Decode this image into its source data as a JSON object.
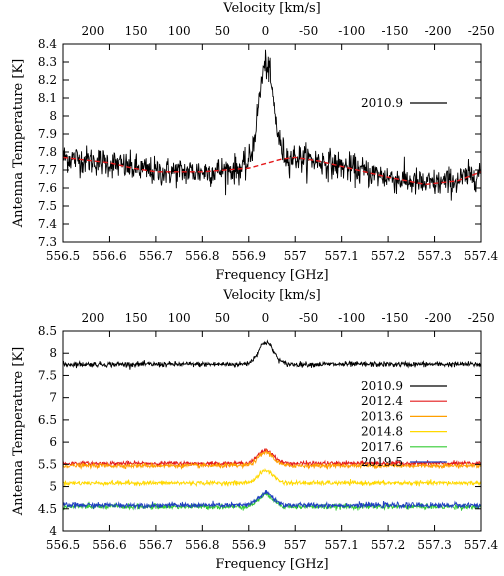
{
  "chart_data": [
    {
      "type": "line",
      "xlabel": "Frequency [GHz]",
      "ylabel": "Antenna Temperature [K]",
      "x2label": "Velocity [km/s]",
      "xlim": [
        556.5,
        557.4
      ],
      "ylim": [
        7.3,
        8.4
      ],
      "x_ticks": [
        "556.5",
        "556.6",
        "556.7",
        "556.8",
        "556.9",
        "557",
        "557.1",
        "557.2",
        "557.3",
        "557.4"
      ],
      "y_ticks": [
        "7.3",
        "7.4",
        "7.5",
        "7.6",
        "7.7",
        "7.8",
        "7.9",
        "8",
        "8.1",
        "8.2",
        "8.3",
        "8.4"
      ],
      "x2_ticks": [
        "200",
        "150",
        "100",
        "50",
        "0",
        "-50",
        "-100",
        "-150",
        "-200",
        "-250"
      ],
      "x2_tick_values": [
        200,
        150,
        100,
        50,
        0,
        -50,
        -100,
        -150,
        -200,
        -250
      ],
      "legend_position": "right",
      "grid": false,
      "series": [
        {
          "name": "2010.9",
          "color": "#000000",
          "baseline": [
            [
              556.5,
              7.77
            ],
            [
              556.6,
              7.74
            ],
            [
              556.65,
              7.71
            ],
            [
              556.7,
              7.69
            ],
            [
              556.8,
              7.69
            ],
            [
              556.9,
              7.71
            ],
            [
              556.97,
              7.76
            ],
            [
              557.0,
              7.77
            ],
            [
              557.05,
              7.75
            ],
            [
              557.1,
              7.72
            ],
            [
              557.2,
              7.66
            ],
            [
              557.28,
              7.62
            ],
            [
              557.35,
              7.64
            ],
            [
              557.4,
              7.69
            ]
          ],
          "line_centre": 556.937,
          "line_peak": 0.55,
          "line_width": 0.016,
          "noise": 0.04
        },
        {
          "name": "",
          "color": "#e41a1c",
          "dashed": true,
          "baseline": [
            [
              556.5,
              7.77
            ],
            [
              556.6,
              7.74
            ],
            [
              556.65,
              7.71
            ],
            [
              556.7,
              7.69
            ],
            [
              556.8,
              7.69
            ],
            [
              556.9,
              7.71
            ],
            [
              556.97,
              7.76
            ],
            [
              557.0,
              7.77
            ],
            [
              557.05,
              7.75
            ],
            [
              557.1,
              7.72
            ],
            [
              557.2,
              7.66
            ],
            [
              557.28,
              7.62
            ],
            [
              557.35,
              7.64
            ],
            [
              557.4,
              7.69
            ]
          ],
          "line_peak": 0,
          "noise": 0
        }
      ]
    },
    {
      "type": "line",
      "xlabel": "Frequency [GHz]",
      "ylabel": "Antenna Temperature [K]",
      "x2label": "Velocity [km/s]",
      "xlim": [
        556.5,
        557.4
      ],
      "ylim": [
        4.0,
        8.5
      ],
      "x_ticks": [
        "556.5",
        "556.6",
        "556.7",
        "556.8",
        "556.9",
        "557",
        "557.1",
        "557.2",
        "557.3",
        "557.4"
      ],
      "y_ticks": [
        "4",
        "4.5",
        "5",
        "5.5",
        "6",
        "6.5",
        "7",
        "7.5",
        "8",
        "8.5"
      ],
      "x2_ticks": [
        "200",
        "150",
        "100",
        "50",
        "0",
        "-50",
        "-100",
        "-150",
        "-200",
        "-250"
      ],
      "x2_tick_values": [
        200,
        150,
        100,
        50,
        0,
        -50,
        -100,
        -150,
        -200,
        -250
      ],
      "legend_position": "right",
      "grid": false,
      "series": [
        {
          "name": "2010.9",
          "color": "#000000",
          "baseline": [
            [
              556.5,
              7.75
            ],
            [
              557.4,
              7.75
            ]
          ],
          "line_centre": 556.937,
          "line_peak": 0.5,
          "line_width": 0.016,
          "noise": 0.03
        },
        {
          "name": "2012.4",
          "color": "#e41a1c",
          "baseline": [
            [
              556.5,
              5.52
            ],
            [
              557.4,
              5.52
            ]
          ],
          "line_centre": 556.937,
          "line_peak": 0.3,
          "line_width": 0.016,
          "noise": 0.025
        },
        {
          "name": "2013.6",
          "color": "#ff9f00",
          "baseline": [
            [
              556.5,
              5.47
            ],
            [
              557.4,
              5.47
            ]
          ],
          "line_centre": 556.937,
          "line_peak": 0.3,
          "line_width": 0.016,
          "noise": 0.025
        },
        {
          "name": "2014.8",
          "color": "#ffd800",
          "baseline": [
            [
              556.5,
              5.08
            ],
            [
              557.4,
              5.08
            ]
          ],
          "line_centre": 556.937,
          "line_peak": 0.28,
          "line_width": 0.016,
          "noise": 0.025
        },
        {
          "name": "2017.6",
          "color": "#33cc33",
          "baseline": [
            [
              556.5,
              4.55
            ],
            [
              557.4,
              4.55
            ]
          ],
          "line_centre": 556.937,
          "line_peak": 0.27,
          "line_width": 0.016,
          "noise": 0.03
        },
        {
          "name": "2019.5",
          "color": "#2040c0",
          "baseline": [
            [
              556.5,
              4.58
            ],
            [
              557.4,
              4.58
            ]
          ],
          "line_centre": 556.937,
          "line_peak": 0.27,
          "line_width": 0.016,
          "noise": 0.03
        }
      ]
    }
  ]
}
